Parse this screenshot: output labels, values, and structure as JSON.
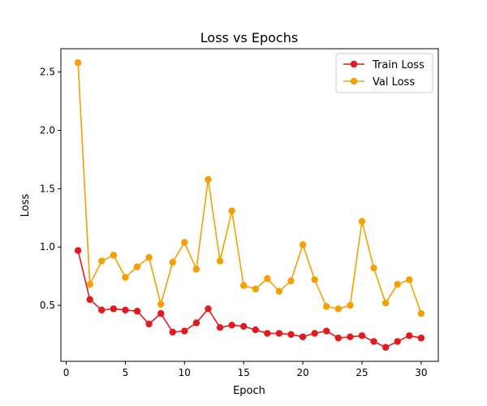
{
  "chart_data": {
    "type": "line",
    "title": "Loss vs Epochs",
    "xlabel": "Epoch",
    "ylabel": "Loss",
    "xlim": [
      -0.45,
      31.45
    ],
    "ylim": [
      0.02,
      2.7
    ],
    "xticks": [
      0,
      5,
      10,
      15,
      20,
      25,
      30
    ],
    "yticks": [
      0.5,
      1.0,
      1.5,
      2.0,
      2.5
    ],
    "xtick_labels": [
      "0",
      "5",
      "10",
      "15",
      "20",
      "25",
      "30"
    ],
    "ytick_labels": [
      "0.5",
      "1.0",
      "1.5",
      "2.0",
      "2.5"
    ],
    "grid": false,
    "legend_position": "top-right",
    "x": [
      1,
      2,
      3,
      4,
      5,
      6,
      7,
      8,
      9,
      10,
      11,
      12,
      13,
      14,
      15,
      16,
      17,
      18,
      19,
      20,
      21,
      22,
      23,
      24,
      25,
      26,
      27,
      28,
      29,
      30
    ],
    "series": [
      {
        "name": "Train Loss",
        "color": "#e31a1c",
        "marker": "circle",
        "values": [
          0.97,
          0.55,
          0.46,
          0.47,
          0.46,
          0.45,
          0.34,
          0.43,
          0.27,
          0.28,
          0.35,
          0.47,
          0.31,
          0.33,
          0.32,
          0.29,
          0.26,
          0.26,
          0.25,
          0.23,
          0.26,
          0.28,
          0.22,
          0.23,
          0.24,
          0.19,
          0.14,
          0.19,
          0.24,
          0.22
        ]
      },
      {
        "name": "Val Loss",
        "color": "#f5a000",
        "marker": "circle",
        "values": [
          2.58,
          0.68,
          0.88,
          0.93,
          0.74,
          0.83,
          0.91,
          0.51,
          0.87,
          1.04,
          0.81,
          1.58,
          0.88,
          1.31,
          0.67,
          0.64,
          0.73,
          0.62,
          0.71,
          1.02,
          0.72,
          0.49,
          0.47,
          0.5,
          1.22,
          0.82,
          0.52,
          0.68,
          0.72,
          0.43
        ]
      }
    ]
  }
}
